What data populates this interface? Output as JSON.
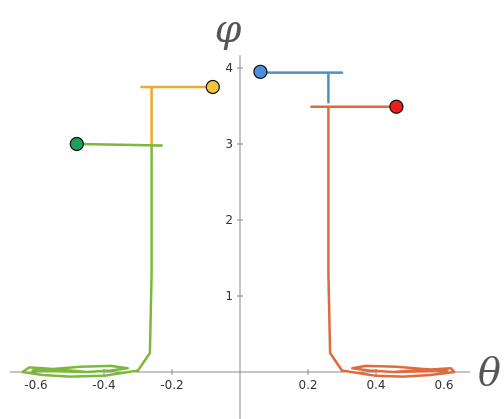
{
  "chart_data": {
    "type": "line",
    "xlabel": "θ",
    "ylabel": "φ",
    "xlim": [
      -0.73,
      0.73
    ],
    "ylim": [
      -0.07,
      4.4
    ],
    "x_ticks": [
      {
        "value": -0.6,
        "label": "-0.6"
      },
      {
        "value": -0.4,
        "label": "-0.4"
      },
      {
        "value": -0.2,
        "label": "-0.2"
      },
      {
        "value": 0.2,
        "label": "0.2"
      },
      {
        "value": 0.4,
        "label": "0.4"
      },
      {
        "value": 0.6,
        "label": "0.6"
      }
    ],
    "y_ticks": [
      {
        "value": 1,
        "label": "1"
      },
      {
        "value": 2,
        "label": "2"
      },
      {
        "value": 3,
        "label": "3"
      },
      {
        "value": 4,
        "label": "4"
      }
    ],
    "grid": false,
    "series": [
      {
        "color": "#4a90c9",
        "marker_color": "#4a90d9",
        "start": [
          0.06,
          3.95
        ],
        "points": [
          [
            0.06,
            3.94
          ],
          [
            0.3,
            3.94
          ],
          [
            0.3,
            3.94
          ],
          [
            0.26,
            3.94
          ],
          [
            0.26,
            3.55
          ]
        ]
      },
      {
        "color": "#f0a830",
        "marker_color": "#f5c33b",
        "start": [
          -0.08,
          3.75
        ],
        "points": [
          [
            -0.08,
            3.75
          ],
          [
            -0.29,
            3.75
          ],
          [
            -0.29,
            3.75
          ],
          [
            -0.26,
            3.75
          ],
          [
            -0.26,
            2.97
          ]
        ]
      },
      {
        "color": "#e06a3b",
        "marker_color": "#ee1c1c",
        "start": [
          0.46,
          3.49
        ],
        "points": [
          [
            0.46,
            3.49
          ],
          [
            0.21,
            3.49
          ],
          [
            0.26,
            3.49
          ],
          [
            0.26,
            3.0
          ],
          [
            0.26,
            1.3
          ],
          [
            0.265,
            0.25
          ],
          [
            0.3,
            0.02
          ],
          [
            0.4,
            -0.05
          ],
          [
            0.48,
            -0.06
          ],
          [
            0.56,
            -0.04
          ],
          [
            0.63,
            0.0
          ],
          [
            0.62,
            0.05
          ],
          [
            0.55,
            0.03
          ],
          [
            0.45,
            0.0
          ],
          [
            0.38,
            0.02
          ],
          [
            0.33,
            0.05
          ],
          [
            0.37,
            0.08
          ],
          [
            0.46,
            0.07
          ],
          [
            0.54,
            0.04
          ],
          [
            0.61,
            0.02
          ],
          [
            0.55,
            0.01
          ],
          [
            0.45,
            0.0
          ]
        ]
      },
      {
        "color": "#7cb83a",
        "marker_color": "#1ea05a",
        "start": [
          -0.48,
          3.0
        ],
        "points": [
          [
            -0.48,
            3.0
          ],
          [
            -0.23,
            2.98
          ],
          [
            -0.26,
            2.98
          ],
          [
            -0.26,
            2.4
          ],
          [
            -0.26,
            1.3
          ],
          [
            -0.265,
            0.25
          ],
          [
            -0.3,
            0.02
          ],
          [
            -0.4,
            -0.05
          ],
          [
            -0.5,
            -0.06
          ],
          [
            -0.58,
            -0.04
          ],
          [
            -0.64,
            0.0
          ],
          [
            -0.62,
            0.06
          ],
          [
            -0.55,
            0.04
          ],
          [
            -0.45,
            0.0
          ],
          [
            -0.38,
            0.02
          ],
          [
            -0.33,
            0.05
          ],
          [
            -0.38,
            0.08
          ],
          [
            -0.47,
            0.07
          ],
          [
            -0.55,
            0.04
          ],
          [
            -0.61,
            0.02
          ],
          [
            -0.54,
            0.01
          ],
          [
            -0.45,
            0.0
          ]
        ]
      }
    ]
  }
}
